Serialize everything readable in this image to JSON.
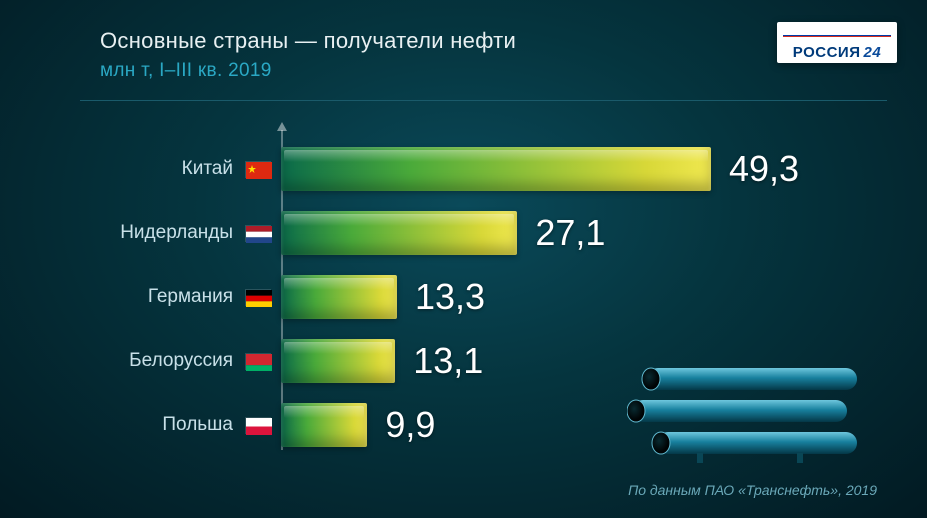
{
  "header": {
    "title_line1": "Основные страны — получатели нефти",
    "title_line2": "млн т, I–III кв. 2019"
  },
  "logo": {
    "text": "РОССИЯ",
    "num": "24"
  },
  "chart": {
    "type": "bar",
    "max_value": 49.3,
    "bar_gradient_start": "#0a6a4a",
    "bar_gradient_mid": "#4aaa3a",
    "bar_gradient_end": "#f0e850",
    "value_fontsize": 36,
    "label_fontsize": 19,
    "rows": [
      {
        "label": "Китай",
        "value": "49,3",
        "num": 49.3,
        "flag": "china"
      },
      {
        "label": "Нидерланды",
        "value": "27,1",
        "num": 27.1,
        "flag": "netherlands"
      },
      {
        "label": "Германия",
        "value": "13,3",
        "num": 13.3,
        "flag": "germany"
      },
      {
        "label": "Белоруссия",
        "value": "13,1",
        "num": 13.1,
        "flag": "belarus"
      },
      {
        "label": "Польша",
        "value": "9,9",
        "num": 9.9,
        "flag": "poland"
      }
    ],
    "flags": {
      "china": {
        "type": "solid",
        "color": "#de2910",
        "star": true
      },
      "netherlands": {
        "type": "tricolor-h",
        "colors": [
          "#ae1c28",
          "#ffffff",
          "#21468b"
        ]
      },
      "germany": {
        "type": "tricolor-h",
        "colors": [
          "#000000",
          "#dd0000",
          "#ffce00"
        ]
      },
      "belarus": {
        "type": "bicolor-h",
        "colors": [
          "#d22730",
          "#00af66"
        ],
        "ratio": 0.66
      },
      "poland": {
        "type": "bicolor-h",
        "colors": [
          "#ffffff",
          "#dc143c"
        ],
        "ratio": 0.5
      }
    }
  },
  "source": "По данным ПАО «Транснефть», 2019",
  "background_color": "#05353f"
}
